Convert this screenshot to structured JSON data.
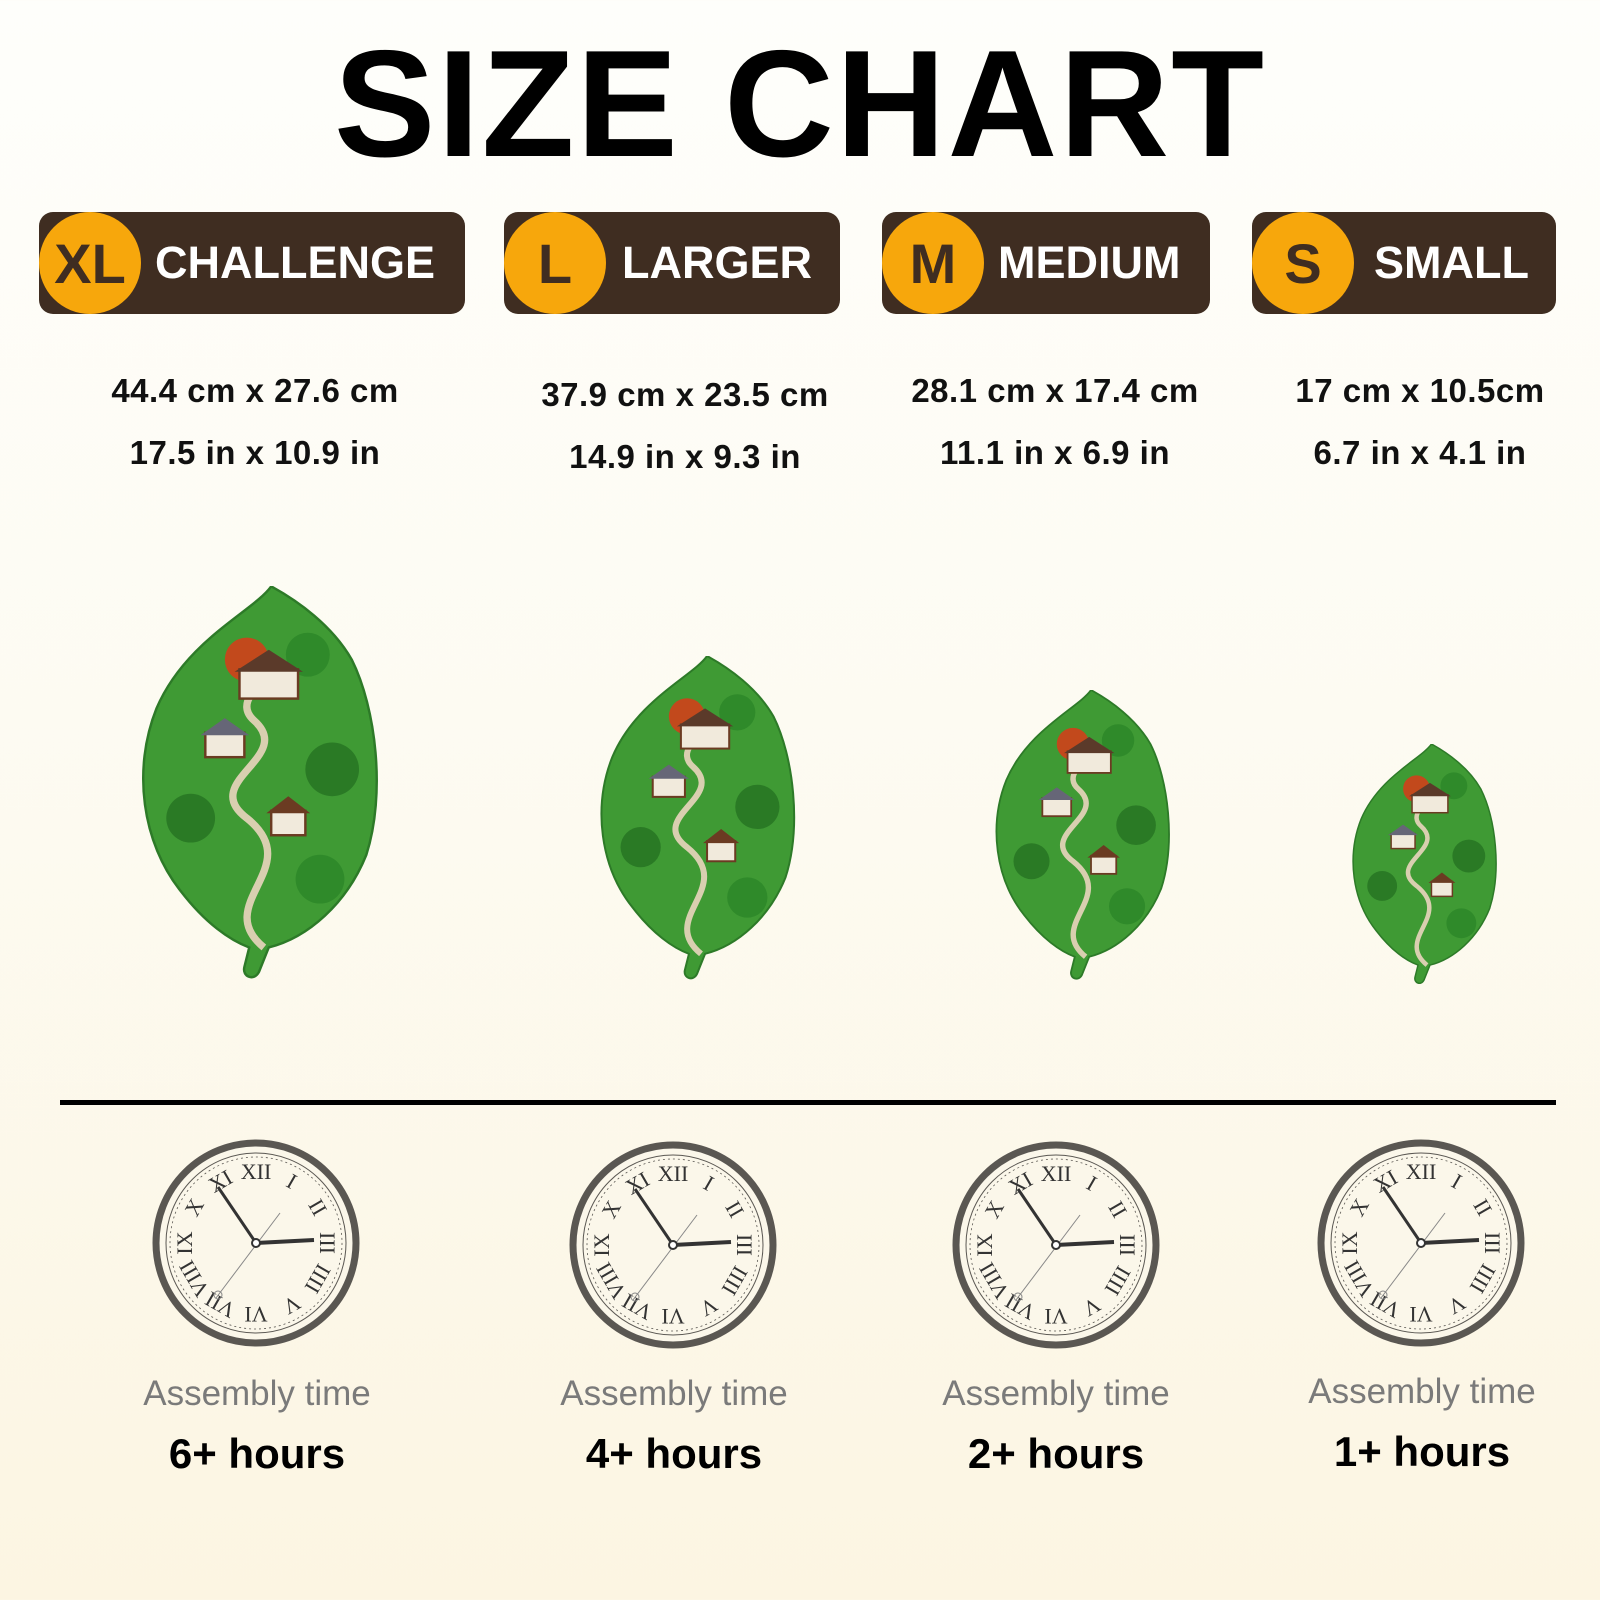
{
  "title": "SIZE CHART",
  "colors": {
    "badge_bg": "#3f2d21",
    "badge_circle": "#f7a70c",
    "leaf_green": "#3f9a34",
    "clock_gray": "#5a5752"
  },
  "clock_numerals": [
    "XII",
    "I",
    "II",
    "III",
    "IIII",
    "V",
    "VI",
    "VII",
    "VIII",
    "IX",
    "X",
    "XI"
  ],
  "sizes": [
    {
      "code": "XL",
      "label": "CHALLENGE",
      "cm": "44.4 cm x 27.6 cm",
      "in": "17.5 in x 10.9 in",
      "assembly_label": "Assembly time",
      "hours": "6+ hours"
    },
    {
      "code": "L",
      "label": "LARGER",
      "cm": "37.9 cm x 23.5 cm",
      "in": "14.9 in x 9.3 in",
      "assembly_label": "Assembly time",
      "hours": "4+ hours"
    },
    {
      "code": "M",
      "label": "MEDIUM",
      "cm": "28.1 cm x 17.4 cm",
      "in": "11.1 in x 6.9 in",
      "assembly_label": "Assembly time",
      "hours": "2+ hours"
    },
    {
      "code": "S",
      "label": "SMALL",
      "cm": "17 cm x 10.5cm",
      "in": "6.7 in x 4.1 in",
      "assembly_label": "Assembly time",
      "hours": "1+ hours"
    }
  ]
}
